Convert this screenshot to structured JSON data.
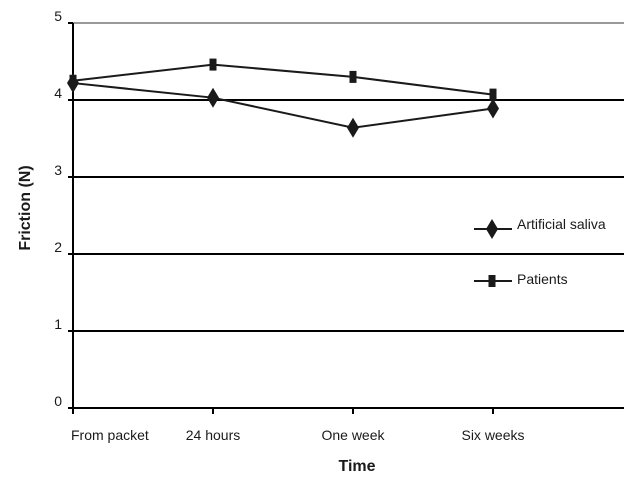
{
  "chart_data": {
    "type": "line",
    "title": "",
    "xlabel": "Time",
    "ylabel": "Friction (N)",
    "categories": [
      "From packet",
      "24 hours",
      "One week",
      "Six weeks"
    ],
    "yticks": [
      "0",
      "1",
      "2",
      "3",
      "4",
      "5"
    ],
    "ylim": [
      0,
      5
    ],
    "grid": true,
    "legend_position": "right",
    "series": [
      {
        "name": "Artificial saliva",
        "marker": "diamond",
        "color": "#1a1a1a",
        "values": [
          4.22,
          4.03,
          3.64,
          3.89
        ]
      },
      {
        "name": "Patients",
        "marker": "square",
        "color": "#1a1a1a",
        "values": [
          4.25,
          4.46,
          4.3,
          4.07
        ]
      }
    ],
    "colors": {
      "gridline": "#000000",
      "top_gridline": "#999999",
      "axis": "#000000"
    }
  }
}
